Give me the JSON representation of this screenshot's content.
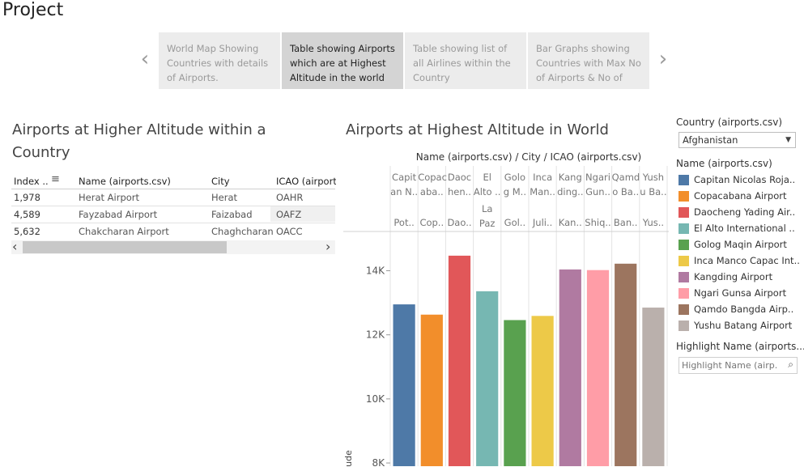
{
  "project": {
    "title": "Project"
  },
  "story": {
    "points": [
      {
        "label": "World Map Showing Countries with details of Airports."
      },
      {
        "label": "Table showing Airports which are at Highest Altitude in the world"
      },
      {
        "label": "Table showing list of all Airlines within the Country"
      },
      {
        "label": "Bar Graphs showing Countries with Max No of Airports & No of"
      }
    ],
    "prev_glyph": "‹",
    "next_glyph": "›",
    "active_index": 1
  },
  "left_sheet": {
    "title": "Airports at Higher Altitude within a Country",
    "columns": [
      "Index ..",
      "Name (airports.csv)",
      "City",
      "ICAO (airport"
    ],
    "sort_glyph": "≡",
    "rows": [
      {
        "index": "1,978",
        "name": "Herat Airport",
        "city": "Herat",
        "icao": "OAHR"
      },
      {
        "index": "4,589",
        "name": "Fayzabad Airport",
        "city": "Faizabad",
        "icao": "OAFZ"
      },
      {
        "index": "5,632",
        "name": "Chakcharan Airport",
        "city": "Chaghcharan",
        "icao": "OACC"
      }
    ],
    "scroll_left_glyph": "‹",
    "scroll_right_glyph": "›"
  },
  "right_sheet": {
    "title": "Airports at Highest Altitude in World",
    "header_title": "Name (airports.csv) / City / ICAO (airports.csv)",
    "columns": [
      {
        "name_lines": [
          "Capit",
          "an N.."
        ],
        "city_lines": [],
        "icao": "Pot.."
      },
      {
        "name_lines": [
          "Copac",
          "aba.."
        ],
        "city_lines": [],
        "icao": "Cop.."
      },
      {
        "name_lines": [
          "Daoc",
          "hen.."
        ],
        "city_lines": [],
        "icao": "Dao.."
      },
      {
        "name_lines": [
          "El",
          "Alto .."
        ],
        "city_lines": [
          "La",
          "Paz"
        ],
        "icao": ""
      },
      {
        "name_lines": [
          "Golo",
          "g M.."
        ],
        "city_lines": [],
        "icao": "Gol.."
      },
      {
        "name_lines": [
          "Inca",
          "Man.."
        ],
        "city_lines": [],
        "icao": "Juli.."
      },
      {
        "name_lines": [
          "Kang",
          "ding.."
        ],
        "city_lines": [],
        "icao": "Kan.."
      },
      {
        "name_lines": [
          "Ngari",
          "Gun.."
        ],
        "city_lines": [],
        "icao": "Shiq.."
      },
      {
        "name_lines": [
          "Qamd",
          "o Ba.."
        ],
        "city_lines": [],
        "icao": "Ban.."
      },
      {
        "name_lines": [
          "Yush",
          "u Ba.."
        ],
        "city_lines": [],
        "icao": "Yus.."
      }
    ],
    "axis_label_fragment": "ude"
  },
  "chart_data": {
    "type": "bar",
    "title": "Airports at Highest Altitude in World",
    "categories": [
      "Capitan Nicolas Rojas Airport",
      "Copacabana Airport",
      "Daocheng Yading Airport",
      "El Alto International Airport",
      "Golog Maqin Airport",
      "Inca Manco Capac International Airport",
      "Kangding Airport",
      "Ngari Gunsa Airport",
      "Qamdo Bangda Airport",
      "Yushu Batang Airport"
    ],
    "values": [
      12950,
      12630,
      14470,
      13360,
      12460,
      12590,
      14040,
      14020,
      14220,
      12850
    ],
    "colors": [
      "#4e79a7",
      "#f28e2b",
      "#e15759",
      "#76b7b2",
      "#59a14f",
      "#edc948",
      "#b07aa1",
      "#ff9da7",
      "#9c755f",
      "#bab0ac"
    ],
    "yticks": [
      8000,
      10000,
      12000,
      14000
    ],
    "ytick_labels": [
      "8K",
      "10K",
      "12K",
      "14K"
    ],
    "ylim_visible": [
      7900,
      15200
    ],
    "ylabel": "ude",
    "grid": false
  },
  "filters": {
    "country": {
      "title": "Country (airports.csv)",
      "value": "Afghanistan",
      "arrow_glyph": "▼"
    },
    "legend": {
      "title": "Name (airports.csv)",
      "items": [
        "Capitan Nicolas Roja..",
        "Copacabana Airport",
        "Daocheng Yading Air..",
        "El Alto International ..",
        "Golog Maqin Airport",
        "Inca Manco Capac Int..",
        "Kangding Airport",
        "Ngari Gunsa Airport",
        "Qamdo Bangda Airp..",
        "Yushu Batang Airport"
      ]
    },
    "highlight": {
      "title": "Highlight Name (airports...",
      "placeholder": "Highlight Name (airp...",
      "search_glyph": "⌕"
    }
  }
}
